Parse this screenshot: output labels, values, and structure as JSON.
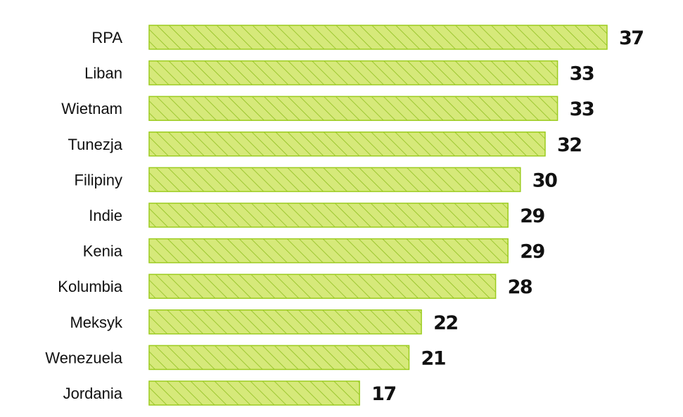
{
  "chart_data": {
    "type": "bar",
    "orientation": "horizontal",
    "categories": [
      "RPA",
      "Liban",
      "Wietnam",
      "Tunezja",
      "Filipiny",
      "Indie",
      "Kenia",
      "Kolumbia",
      "Meksyk",
      "Wenezuela",
      "Jordania"
    ],
    "values": [
      37,
      33,
      33,
      32,
      30,
      29,
      29,
      28,
      22,
      21,
      17
    ],
    "xlim": [
      0,
      37
    ],
    "grid": false,
    "legend": "none",
    "data_labels": true,
    "bar_fill": "#d6e97a",
    "bar_stroke": "#9ccc1e",
    "hatch_color": "#8fbf1f",
    "text_color": "#111111"
  }
}
